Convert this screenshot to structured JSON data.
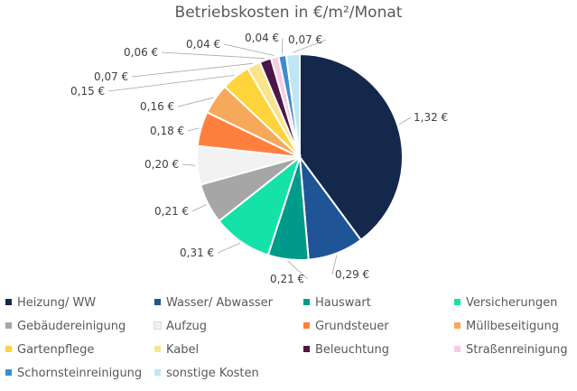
{
  "chart_data": {
    "type": "pie",
    "title": "Betriebskosten in €/m²/Monat",
    "legend_position": "bottom",
    "slices": [
      {
        "name": "Heizung/ WW",
        "value": 1.32,
        "label": "1,32 €",
        "color": "#14284b"
      },
      {
        "name": "Wasser/ Abwasser",
        "value": 0.29,
        "label": "0,29 €",
        "color": "#1f5597"
      },
      {
        "name": "Hauswart",
        "value": 0.21,
        "label": "0,21 €",
        "color": "#009a8a"
      },
      {
        "name": "Versicherungen",
        "value": 0.31,
        "label": "0,31 €",
        "color": "#14e2a8"
      },
      {
        "name": "Gebäudereinigung",
        "value": 0.21,
        "label": "0,21 €",
        "color": "#a6a6a6"
      },
      {
        "name": "Aufzug",
        "value": 0.2,
        "label": "0,20 €",
        "color": "#f2f2f2"
      },
      {
        "name": "Grundsteuer",
        "value": 0.18,
        "label": "0,18 €",
        "color": "#ff7f3f"
      },
      {
        "name": "Müllbeseitigung",
        "value": 0.16,
        "label": "0,16 €",
        "color": "#f6a95b"
      },
      {
        "name": "Gartenpflege",
        "value": 0.15,
        "label": "0,15 €",
        "color": "#ffd43b"
      },
      {
        "name": "Kabel",
        "value": 0.07,
        "label": "0,07 €",
        "color": "#fbe38a"
      },
      {
        "name": "Beleuchtung",
        "value": 0.06,
        "label": "0,06 €",
        "color": "#4a1747"
      },
      {
        "name": "Straßenreinigung",
        "value": 0.04,
        "label": "0,04 €",
        "color": "#f4cce8"
      },
      {
        "name": "Schornsteinreinigung",
        "value": 0.04,
        "label": "0,04 €",
        "color": "#3f8bd0"
      },
      {
        "name": "sonstige Kosten",
        "value": 0.07,
        "label": "0,07 €",
        "color": "#bfe6f6"
      }
    ]
  }
}
